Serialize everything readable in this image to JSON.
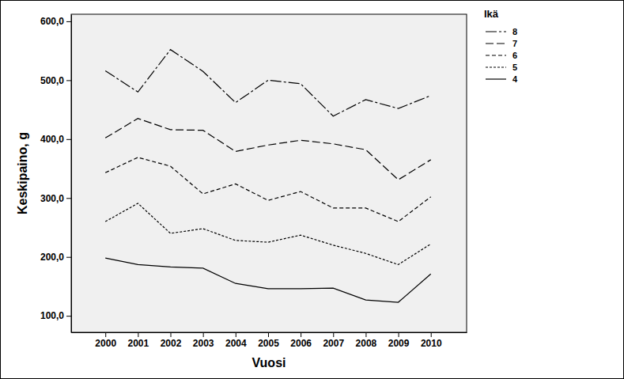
{
  "chart_data": {
    "type": "line",
    "x_label": "Vuosi",
    "y_label": "Keskipaino, g",
    "legend_title": "Ikä",
    "legend": "right",
    "grid": false,
    "x": [
      2000,
      2001,
      2002,
      2003,
      2004,
      2005,
      2006,
      2007,
      2008,
      2009,
      2010
    ],
    "xlim": [
      1998.95,
      2011.1
    ],
    "xticks": [
      2000,
      2001,
      2002,
      2003,
      2004,
      2005,
      2006,
      2007,
      2008,
      2009,
      2010
    ],
    "ylim": [
      72,
      612
    ],
    "yticks": [
      {
        "value": 100,
        "label": "100,0"
      },
      {
        "value": 200,
        "label": "200,0"
      },
      {
        "value": 300,
        "label": "300,0"
      },
      {
        "value": 400,
        "label": "400,0"
      },
      {
        "value": 500,
        "label": "500,0"
      },
      {
        "value": 600,
        "label": "600,0"
      }
    ],
    "series": [
      {
        "name": "8",
        "color": "#000000",
        "line_style": "dashdot",
        "values": [
          516,
          480,
          552,
          515,
          462,
          500,
          494,
          439,
          467,
          452,
          474
        ]
      },
      {
        "name": "7",
        "color": "#000000",
        "line_style": "longdash",
        "values": [
          402,
          435,
          416,
          415,
          379,
          390,
          398,
          392,
          382,
          331,
          365
        ]
      },
      {
        "name": "6",
        "color": "#000000",
        "line_style": "dashed",
        "values": [
          343,
          369,
          354,
          307,
          324,
          296,
          311,
          283,
          283,
          260,
          302
        ]
      },
      {
        "name": "5",
        "color": "#000000",
        "line_style": "dotted",
        "values": [
          260,
          291,
          240,
          248,
          228,
          225,
          237,
          220,
          206,
          187,
          222
        ]
      },
      {
        "name": "4",
        "color": "#000000",
        "line_style": "solid",
        "values": [
          198,
          187,
          183,
          181,
          155,
          146,
          146,
          147,
          127,
          123,
          171
        ]
      }
    ]
  }
}
